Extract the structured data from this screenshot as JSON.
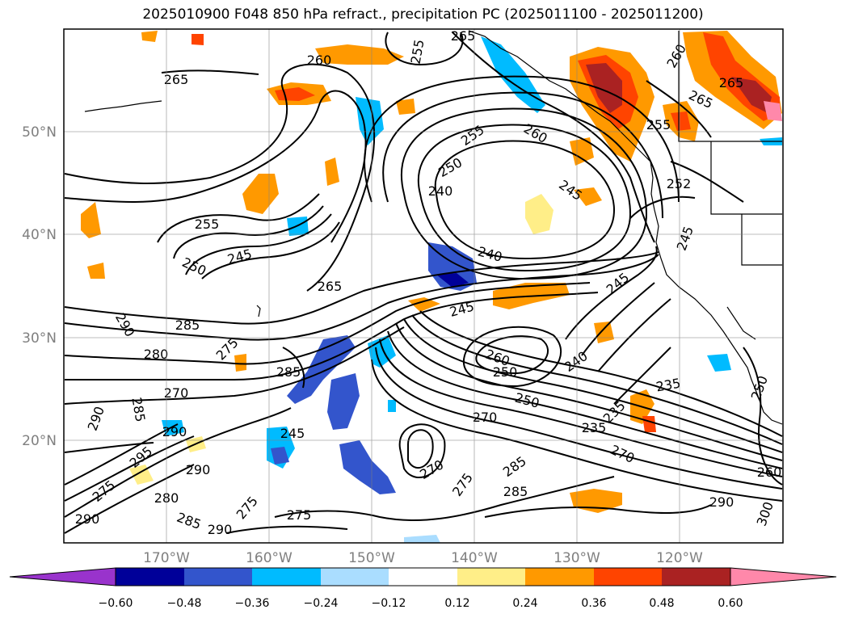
{
  "title": "2025010900 F048 850 hPa refract., precipitation PC (2025011100 - 2025011200)",
  "map": {
    "lat_labels": [
      "50°N",
      "40°N",
      "30°N",
      "20°N"
    ],
    "lon_labels": [
      "170°W",
      "160°W",
      "150°W",
      "140°W",
      "130°W",
      "120°W"
    ],
    "contour_labels": [
      "265",
      "260",
      "255",
      "265",
      "260",
      "255",
      "250",
      "245",
      "255",
      "250",
      "245",
      "245",
      "240",
      "265",
      "285",
      "290",
      "280",
      "275",
      "285",
      "270",
      "290",
      "285",
      "290",
      "295",
      "290",
      "280",
      "285",
      "290",
      "275",
      "275",
      "270",
      "275",
      "285",
      "285",
      "270",
      "240",
      "250",
      "260",
      "245",
      "250",
      "235",
      "235",
      "270",
      "265",
      "260",
      "265",
      "250",
      "245",
      "240",
      "235",
      "255",
      "290",
      "290",
      "300",
      "260",
      "252",
      "245",
      "275"
    ],
    "colors": {
      "coast": "#000000",
      "grid": "#808080"
    }
  },
  "colorbar": {
    "ticks": [
      "−0.60",
      "−0.48",
      "−0.36",
      "−0.24",
      "−0.12",
      "0.12",
      "0.24",
      "0.36",
      "0.48",
      "0.60"
    ],
    "colors": [
      "#9933cc",
      "#000099",
      "#3355cc",
      "#00bbff",
      "#aaddff",
      "#ffffff",
      "#ffee88",
      "#ff9900",
      "#ff4400",
      "#aa2222",
      "#ff88aa"
    ]
  }
}
